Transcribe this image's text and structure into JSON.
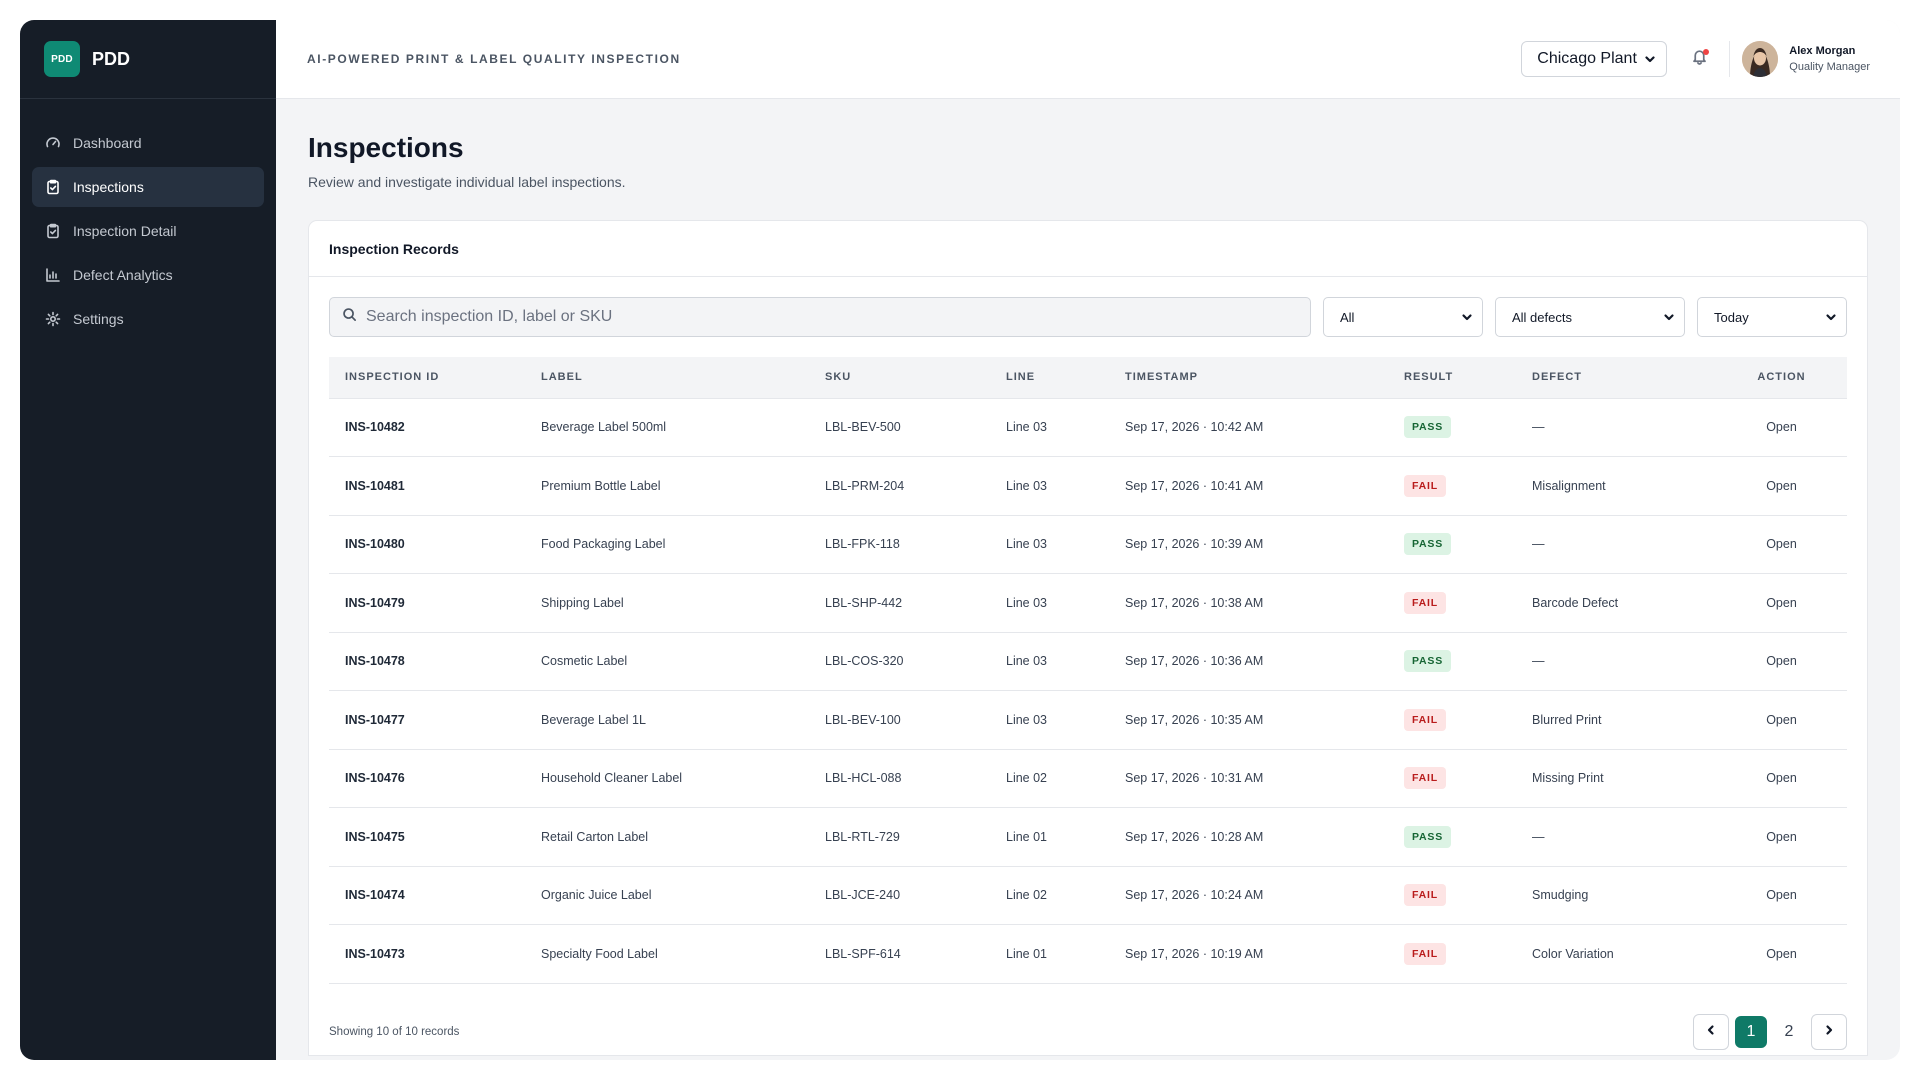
{
  "brand": {
    "logo_text": "PDD",
    "name": "PDD"
  },
  "sidebar": {
    "items": [
      {
        "label": "Dashboard",
        "icon": "gauge-icon",
        "active": false
      },
      {
        "label": "Inspections",
        "icon": "clipboard-check-icon",
        "active": true
      },
      {
        "label": "Inspection Detail",
        "icon": "clipboard-check-icon",
        "active": false
      },
      {
        "label": "Defect Analytics",
        "icon": "bar-chart-icon",
        "active": false
      },
      {
        "label": "Settings",
        "icon": "gear-icon",
        "active": false
      }
    ]
  },
  "header": {
    "tagline": "AI-POWERED PRINT & LABEL QUALITY INSPECTION",
    "plant_selected": "Chicago Plant",
    "user": {
      "name": "Alex Morgan",
      "role": "Quality Manager"
    },
    "notification_dot_color": "#ef4444"
  },
  "page": {
    "title": "Inspections",
    "subtitle": "Review and investigate individual label inspections."
  },
  "card": {
    "title": "Inspection Records",
    "search_placeholder": "Search inspection ID, label or SKU",
    "filters": {
      "status": "All",
      "defect": "All defects",
      "date": "Today"
    },
    "columns": [
      "INSPECTION ID",
      "LABEL",
      "SKU",
      "LINE",
      "TIMESTAMP",
      "RESULT",
      "DEFECT",
      "ACTION"
    ],
    "rows": [
      {
        "id": "INS-10482",
        "label": "Beverage Label 500ml",
        "sku": "LBL-BEV-500",
        "line": "Line 03",
        "timestamp": "Sep 17, 2026 · 10:42 AM",
        "result": "PASS",
        "defect": "—",
        "action": "Open"
      },
      {
        "id": "INS-10481",
        "label": "Premium Bottle Label",
        "sku": "LBL-PRM-204",
        "line": "Line 03",
        "timestamp": "Sep 17, 2026 · 10:41 AM",
        "result": "FAIL",
        "defect": "Misalignment",
        "action": "Open"
      },
      {
        "id": "INS-10480",
        "label": "Food Packaging Label",
        "sku": "LBL-FPK-118",
        "line": "Line 03",
        "timestamp": "Sep 17, 2026 · 10:39 AM",
        "result": "PASS",
        "defect": "—",
        "action": "Open"
      },
      {
        "id": "INS-10479",
        "label": "Shipping Label",
        "sku": "LBL-SHP-442",
        "line": "Line 03",
        "timestamp": "Sep 17, 2026 · 10:38 AM",
        "result": "FAIL",
        "defect": "Barcode Defect",
        "action": "Open"
      },
      {
        "id": "INS-10478",
        "label": "Cosmetic Label",
        "sku": "LBL-COS-320",
        "line": "Line 03",
        "timestamp": "Sep 17, 2026 · 10:36 AM",
        "result": "PASS",
        "defect": "—",
        "action": "Open"
      },
      {
        "id": "INS-10477",
        "label": "Beverage Label 1L",
        "sku": "LBL-BEV-100",
        "line": "Line 03",
        "timestamp": "Sep 17, 2026 · 10:35 AM",
        "result": "FAIL",
        "defect": "Blurred Print",
        "action": "Open"
      },
      {
        "id": "INS-10476",
        "label": "Household Cleaner Label",
        "sku": "LBL-HCL-088",
        "line": "Line 02",
        "timestamp": "Sep 17, 2026 · 10:31 AM",
        "result": "FAIL",
        "defect": "Missing Print",
        "action": "Open"
      },
      {
        "id": "INS-10475",
        "label": "Retail Carton Label",
        "sku": "LBL-RTL-729",
        "line": "Line 01",
        "timestamp": "Sep 17, 2026 · 10:28 AM",
        "result": "PASS",
        "defect": "—",
        "action": "Open"
      },
      {
        "id": "INS-10474",
        "label": "Organic Juice Label",
        "sku": "LBL-JCE-240",
        "line": "Line 02",
        "timestamp": "Sep 17, 2026 · 10:24 AM",
        "result": "FAIL",
        "defect": "Smudging",
        "action": "Open"
      },
      {
        "id": "INS-10473",
        "label": "Specialty Food Label",
        "sku": "LBL-SPF-614",
        "line": "Line 01",
        "timestamp": "Sep 17, 2026 · 10:19 AM",
        "result": "FAIL",
        "defect": "Color Variation",
        "action": "Open"
      }
    ],
    "footer": {
      "showing": "Showing 10 of 10 records",
      "pages": [
        "1",
        "2"
      ],
      "current_page": "1"
    }
  },
  "colors": {
    "accent": "#0f7a67",
    "sidebar_bg": "#161d27",
    "pass": "#166534",
    "fail": "#b91c1c"
  }
}
